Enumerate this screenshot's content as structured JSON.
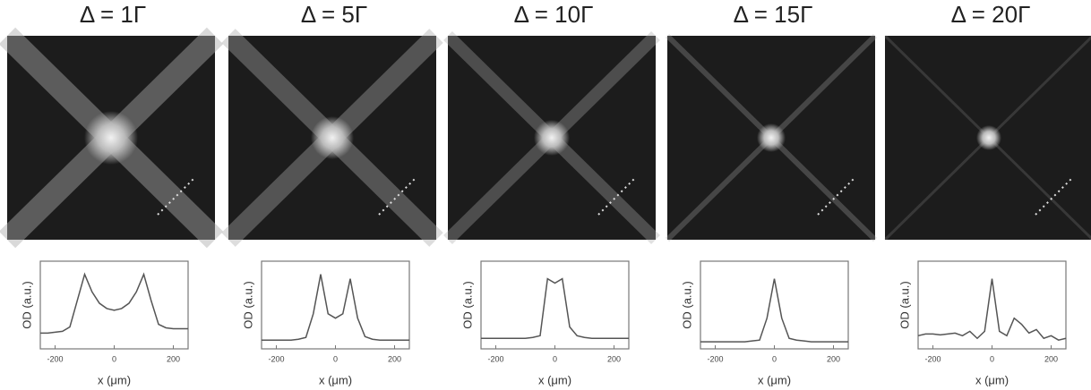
{
  "chart_data": [
    {
      "type": "line",
      "title": "Δ = 1Γ",
      "xlabel": "x (μm)",
      "ylabel": "OD (a.u.)",
      "color": "#555555",
      "x": [
        -250,
        -225,
        -200,
        -175,
        -150,
        -125,
        -100,
        -75,
        -50,
        -25,
        0,
        25,
        50,
        75,
        100,
        125,
        150,
        175,
        200,
        225,
        250
      ],
      "values": [
        0.18,
        0.18,
        0.19,
        0.2,
        0.25,
        0.55,
        0.85,
        0.65,
        0.52,
        0.46,
        0.44,
        0.46,
        0.52,
        0.65,
        0.85,
        0.55,
        0.28,
        0.24,
        0.23,
        0.23,
        0.23
      ],
      "xlim": [
        -250,
        250
      ],
      "xticks": [
        -200,
        0,
        200
      ],
      "ylim": [
        0,
        1
      ]
    },
    {
      "type": "line",
      "title": "Δ = 5Γ",
      "xlabel": "x (μm)",
      "ylabel": "OD (a.u.)",
      "color": "#555555",
      "x": [
        -250,
        -225,
        -200,
        -175,
        -150,
        -125,
        -100,
        -75,
        -50,
        -25,
        0,
        25,
        50,
        75,
        100,
        125,
        150,
        175,
        200,
        225,
        250
      ],
      "values": [
        0.1,
        0.1,
        0.1,
        0.1,
        0.1,
        0.11,
        0.13,
        0.4,
        0.85,
        0.4,
        0.35,
        0.4,
        0.8,
        0.35,
        0.14,
        0.11,
        0.1,
        0.1,
        0.1,
        0.1,
        0.1
      ],
      "xlim": [
        -250,
        250
      ],
      "xticks": [
        -200,
        0,
        200
      ],
      "ylim": [
        0,
        1
      ]
    },
    {
      "type": "line",
      "title": "Δ = 10Γ",
      "xlabel": "x (μm)",
      "ylabel": "OD (a.u.)",
      "color": "#555555",
      "x": [
        -250,
        -225,
        -200,
        -175,
        -150,
        -125,
        -100,
        -75,
        -50,
        -25,
        0,
        25,
        50,
        75,
        100,
        125,
        150,
        175,
        200,
        225,
        250
      ],
      "values": [
        0.12,
        0.12,
        0.12,
        0.12,
        0.12,
        0.12,
        0.12,
        0.13,
        0.15,
        0.8,
        0.75,
        0.8,
        0.25,
        0.15,
        0.13,
        0.12,
        0.12,
        0.12,
        0.12,
        0.12,
        0.12
      ],
      "xlim": [
        -250,
        250
      ],
      "xticks": [
        -200,
        0,
        200
      ],
      "ylim": [
        0,
        1
      ]
    },
    {
      "type": "line",
      "title": "Δ = 15Γ",
      "xlabel": "x (μm)",
      "ylabel": "OD (a.u.)",
      "color": "#555555",
      "x": [
        -250,
        -225,
        -200,
        -175,
        -150,
        -125,
        -100,
        -75,
        -50,
        -25,
        0,
        25,
        50,
        75,
        100,
        125,
        150,
        175,
        200,
        225,
        250
      ],
      "values": [
        0.08,
        0.08,
        0.08,
        0.08,
        0.08,
        0.08,
        0.08,
        0.09,
        0.1,
        0.35,
        0.8,
        0.35,
        0.12,
        0.1,
        0.09,
        0.08,
        0.08,
        0.08,
        0.08,
        0.08,
        0.08
      ],
      "xlim": [
        -250,
        250
      ],
      "xticks": [
        -200,
        0,
        200
      ],
      "ylim": [
        0,
        1
      ]
    },
    {
      "type": "line",
      "title": "Δ = 20Γ",
      "xlabel": "x (μm)",
      "ylabel": "OD (a.u.)",
      "color": "#555555",
      "x": [
        -250,
        -225,
        -200,
        -175,
        -150,
        -125,
        -100,
        -75,
        -50,
        -25,
        0,
        25,
        50,
        75,
        100,
        125,
        150,
        175,
        200,
        225,
        250
      ],
      "values": [
        0.15,
        0.17,
        0.17,
        0.16,
        0.17,
        0.18,
        0.15,
        0.2,
        0.12,
        0.2,
        0.8,
        0.2,
        0.15,
        0.35,
        0.28,
        0.18,
        0.22,
        0.12,
        0.15,
        0.1,
        0.12
      ],
      "xlim": [
        -250,
        250
      ],
      "xticks": [
        -200,
        0,
        200
      ],
      "ylim": [
        0,
        1
      ]
    }
  ]
}
